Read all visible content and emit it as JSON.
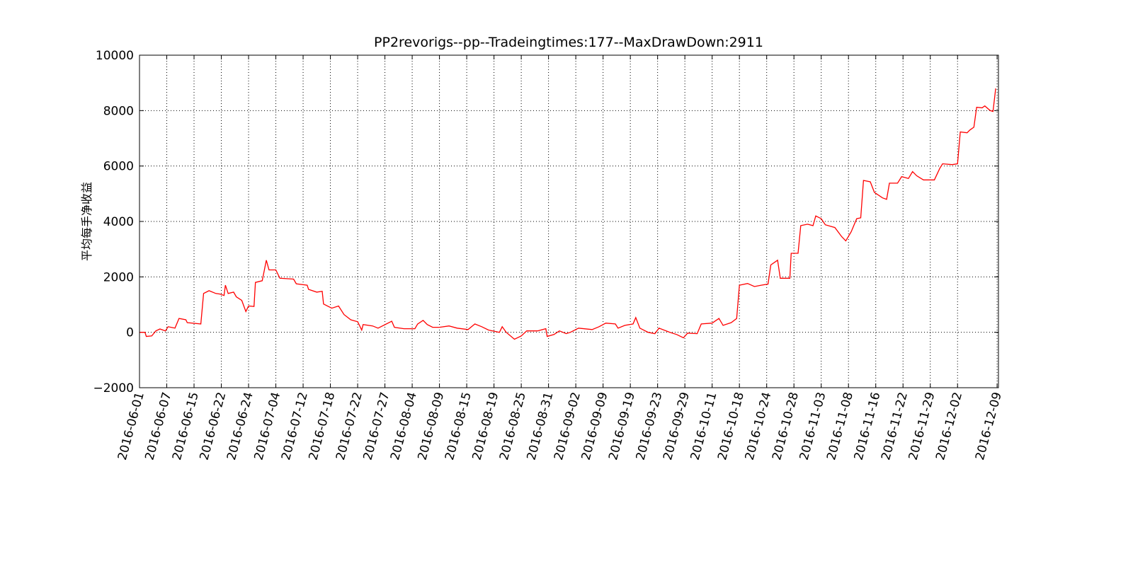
{
  "chart_data": {
    "type": "line",
    "title": "PP2revorigs--pp--Tradeingtimes:177--MaxDrawDown:2911",
    "y_label": "平均每手净收益",
    "color": "#ff0000",
    "grid": true,
    "x": [
      0,
      4,
      5,
      9,
      12,
      15,
      19,
      21,
      26,
      29,
      34,
      35,
      45,
      47,
      51,
      56,
      59,
      62,
      63,
      65,
      69,
      71,
      75,
      78,
      80,
      84,
      85,
      90,
      93,
      95,
      100,
      103,
      113,
      115,
      123,
      124,
      130,
      134,
      135,
      141,
      146,
      150,
      155,
      160,
      163,
      164,
      171,
      175,
      185,
      187,
      194,
      202,
      204,
      208,
      211,
      215,
      220,
      227,
      233,
      241,
      246,
      251,
      256,
      264,
      266,
      269,
      275,
      280,
      284,
      292,
      298,
      299,
      304,
      308,
      313,
      316,
      322,
      332,
      337,
      342,
      349,
      351,
      356,
      362,
      364,
      367,
      373,
      378,
      381,
      389,
      394,
      399,
      402,
      409,
      412,
      420,
      425,
      428,
      434,
      438,
      440,
      446,
      451,
      456,
      461,
      463,
      468,
      470,
      477,
      478,
      483,
      485,
      490,
      494,
      496,
      500,
      503,
      510,
      515,
      518,
      522,
      526,
      529,
      531,
      536,
      539,
      545,
      548,
      550,
      556,
      559,
      564,
      567,
      570,
      575,
      583,
      587,
      589,
      596,
      600,
      602,
      607,
      609,
      612,
      614,
      618,
      620,
      624,
      626,
      628
    ],
    "values": [
      0,
      0,
      -150,
      -130,
      50,
      120,
      50,
      200,
      150,
      500,
      450,
      350,
      300,
      1400,
      1500,
      1400,
      1380,
      1330,
      1700,
      1400,
      1450,
      1280,
      1150,
      750,
      950,
      930,
      1800,
      1860,
      2600,
      2250,
      2250,
      1950,
      1920,
      1750,
      1700,
      1550,
      1450,
      1480,
      1020,
      870,
      950,
      640,
      450,
      380,
      80,
      280,
      230,
      150,
      400,
      180,
      130,
      130,
      300,
      430,
      280,
      180,
      180,
      230,
      150,
      100,
      300,
      200,
      80,
      0,
      200,
      0,
      -250,
      -130,
      50,
      50,
      130,
      -150,
      -80,
      50,
      -50,
      0,
      150,
      100,
      200,
      330,
      300,
      150,
      250,
      300,
      530,
      150,
      0,
      -50,
      150,
      0,
      -80,
      -200,
      -30,
      -50,
      300,
      330,
      500,
      250,
      350,
      500,
      1700,
      1760,
      1650,
      1700,
      1740,
      2430,
      2600,
      1950,
      1950,
      2850,
      2850,
      3850,
      3900,
      3850,
      4200,
      4100,
      3880,
      3780,
      3450,
      3300,
      3630,
      4100,
      4130,
      5480,
      5430,
      5050,
      4850,
      4800,
      5380,
      5380,
      5620,
      5550,
      5800,
      5650,
      5500,
      5500,
      5920,
      6080,
      6050,
      6080,
      7230,
      7200,
      7300,
      7400,
      8120,
      8100,
      8170,
      8000,
      7970,
      8800
    ],
    "xlim": [
      0,
      630
    ],
    "xticks": [
      {
        "value": 0,
        "label": "2016-06-01"
      },
      {
        "value": 20,
        "label": "2016-06-07"
      },
      {
        "value": 40,
        "label": "2016-06-15"
      },
      {
        "value": 60,
        "label": "2016-06-22"
      },
      {
        "value": 80,
        "label": "2016-06-24"
      },
      {
        "value": 100,
        "label": "2016-07-04"
      },
      {
        "value": 120,
        "label": "2016-07-12"
      },
      {
        "value": 140,
        "label": "2016-07-18"
      },
      {
        "value": 160,
        "label": "2016-07-22"
      },
      {
        "value": 180,
        "label": "2016-07-27"
      },
      {
        "value": 200,
        "label": "2016-08-04"
      },
      {
        "value": 220,
        "label": "2016-08-09"
      },
      {
        "value": 240,
        "label": "2016-08-15"
      },
      {
        "value": 260,
        "label": "2016-08-19"
      },
      {
        "value": 280,
        "label": "2016-08-25"
      },
      {
        "value": 300,
        "label": "2016-08-31"
      },
      {
        "value": 320,
        "label": "2016-09-02"
      },
      {
        "value": 340,
        "label": "2016-09-09"
      },
      {
        "value": 360,
        "label": "2016-09-19"
      },
      {
        "value": 380,
        "label": "2016-09-23"
      },
      {
        "value": 400,
        "label": "2016-09-29"
      },
      {
        "value": 420,
        "label": "2016-10-11"
      },
      {
        "value": 440,
        "label": "2016-10-18"
      },
      {
        "value": 460,
        "label": "2016-10-24"
      },
      {
        "value": 480,
        "label": "2016-10-28"
      },
      {
        "value": 500,
        "label": "2016-11-03"
      },
      {
        "value": 520,
        "label": "2016-11-08"
      },
      {
        "value": 540,
        "label": "2016-11-16"
      },
      {
        "value": 560,
        "label": "2016-11-22"
      },
      {
        "value": 580,
        "label": "2016-11-29"
      },
      {
        "value": 600,
        "label": "2016-12-02"
      },
      {
        "value": 629,
        "label": "2016-12-09"
      }
    ],
    "ylim": [
      -2000,
      10000
    ],
    "yticks": [
      {
        "value": -2000,
        "label": "−2000"
      },
      0,
      2000,
      4000,
      6000,
      8000,
      10000
    ]
  }
}
